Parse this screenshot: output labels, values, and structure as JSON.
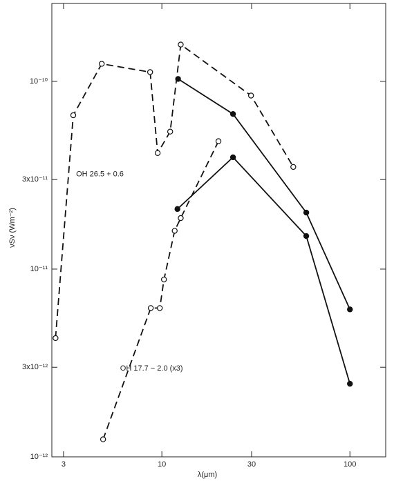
{
  "chart_data": {
    "type": "line",
    "x_label": "λ(μm)",
    "y_label": "νSν (Wm⁻²)",
    "log_x": true,
    "log_y": true,
    "xlim": [
      2.6,
      155
    ],
    "ylim": [
      1e-12,
      2.6e-10
    ],
    "xticks": [
      3,
      10,
      30,
      100
    ],
    "yticks": [
      {
        "value": 1e-12,
        "label": "10⁻¹²"
      },
      {
        "value": 3e-12,
        "label": "3x10⁻¹²"
      },
      {
        "value": 1e-11,
        "label": "10⁻¹¹"
      },
      {
        "value": 3e-11,
        "label": "3x10⁻¹¹"
      },
      {
        "value": 1e-10,
        "label": "10⁻¹⁰"
      }
    ],
    "series": [
      {
        "color": "#111111",
        "dashed": true,
        "marker": "open",
        "x": [
          2.72,
          3.38,
          4.79,
          8.66,
          9.5,
          11.07,
          12.6,
          29.8,
          50
        ],
        "values": [
          4.29e-12,
          6.6e-11,
          1.24e-10,
          1.12e-10,
          4.15e-11,
          5.4e-11,
          1.57e-10,
          8.4e-11,
          3.5e-11
        ]
      },
      {
        "color": "#111111",
        "dashed": false,
        "marker": "filled",
        "x": [
          12.2,
          23.9,
          58.6,
          100
        ],
        "values": [
          1.03e-10,
          6.7e-11,
          2e-11,
          6.1e-12
        ]
      },
      {
        "color": "#111111",
        "dashed": true,
        "marker": "open",
        "x": [
          4.87,
          8.73,
          9.75,
          10.26,
          11.7,
          12.6,
          20.0
        ],
        "values": [
          1.24e-12,
          6.2e-12,
          6.2e-12,
          8.8e-12,
          1.6e-11,
          1.87e-11,
          4.8e-11
        ]
      },
      {
        "color": "#111111",
        "dashed": false,
        "marker": "filled",
        "x": [
          12.1,
          23.9,
          58.6,
          100
        ],
        "values": [
          2.09e-11,
          3.94e-11,
          1.5e-11,
          2.45e-12
        ]
      }
    ],
    "annotations": [
      {
        "text": "OH 26.5 + 0.6",
        "x": 3.5,
        "y": 3.2e-11
      },
      {
        "text": "OH 17.7 − 2.0 (x3)",
        "x": 6.0,
        "y": 2.95e-12
      }
    ]
  }
}
